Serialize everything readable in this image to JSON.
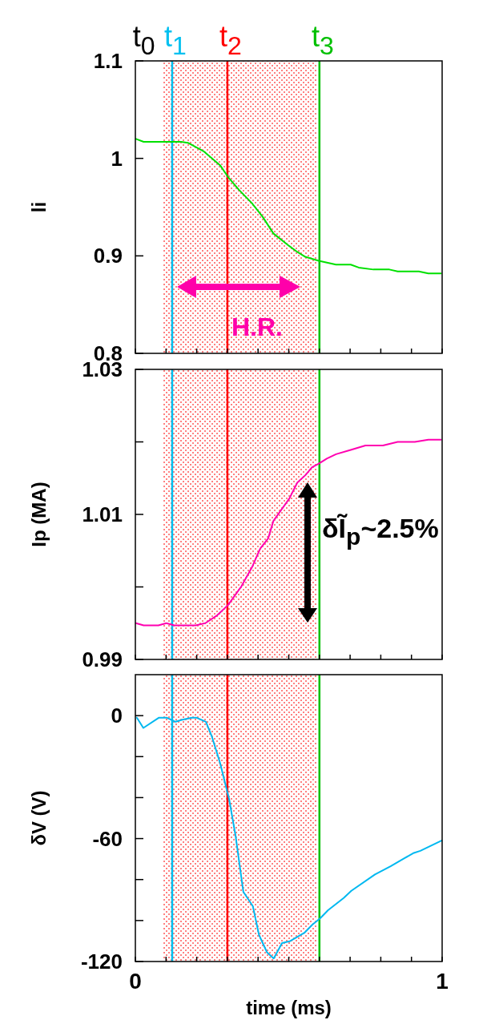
{
  "chart_data": [
    {
      "type": "line",
      "ylabel": "li",
      "xlim": [
        0,
        1
      ],
      "ylim": [
        0.8,
        1.1
      ],
      "xticks": [
        {
          "value": 0,
          "label": null
        },
        {
          "value": 0.1,
          "label": null
        },
        {
          "value": 0.2,
          "label": null
        },
        {
          "value": 0.3,
          "label": null
        },
        {
          "value": 0.4,
          "label": null
        },
        {
          "value": 0.5,
          "label": null
        },
        {
          "value": 0.6,
          "label": null
        },
        {
          "value": 0.7,
          "label": null
        },
        {
          "value": 0.8,
          "label": null
        },
        {
          "value": 0.9,
          "label": null
        },
        {
          "value": 1,
          "label": null
        }
      ],
      "yticks": [
        0.8,
        0.9,
        1,
        1.1
      ],
      "tick_labels": "y",
      "x": [
        0.002,
        0.027,
        0.149,
        0.171,
        0.224,
        0.276,
        0.302,
        0.337,
        0.38,
        0.415,
        0.45,
        0.502,
        0.528,
        0.554,
        0.598,
        0.654,
        0.702,
        0.728,
        0.776,
        0.828,
        0.855,
        0.924,
        0.955,
        0.996
      ],
      "series": [
        {
          "color": "#00e000",
          "values": [
            1.02,
            1.017,
            1.017,
            1.016,
            1.007,
            0.993,
            0.981,
            0.968,
            0.954,
            0.94,
            0.923,
            0.91,
            0.904,
            0.899,
            0.895,
            0.891,
            0.891,
            0.888,
            0.886,
            0.886,
            0.884,
            0.884,
            0.882,
            0.882
          ]
        }
      ],
      "bands": [
        {
          "axis": "x",
          "from": 0.09,
          "to": 0.59,
          "label": "t$_{0}$",
          "color": "#ff8080"
        }
      ],
      "ref_lines": [
        {
          "axis": "x",
          "value": 0.12,
          "label": "t$_{1}$",
          "color": "#00c0f0"
        },
        {
          "axis": "x",
          "value": 0.3,
          "label": "t$_{2}$",
          "color": "#ff0000"
        },
        {
          "axis": "x",
          "value": 0.6,
          "label": "t$_{3}$",
          "color": "#00c000"
        }
      ],
      "annotations": [
        "H.R."
      ]
    },
    {
      "type": "line",
      "ylabel": "Ip (MA)",
      "xlim": [
        0,
        1
      ],
      "ylim": [
        0.99,
        1.03
      ],
      "xticks": [
        {
          "value": 0,
          "label": null
        },
        {
          "value": 0.1,
          "label": null
        },
        {
          "value": 0.2,
          "label": null
        },
        {
          "value": 0.3,
          "label": null
        },
        {
          "value": 0.4,
          "label": null
        },
        {
          "value": 0.5,
          "label": null
        },
        {
          "value": 0.6,
          "label": null
        },
        {
          "value": 0.7,
          "label": null
        },
        {
          "value": 0.8,
          "label": null
        },
        {
          "value": 0.9,
          "label": null
        },
        {
          "value": 1,
          "label": null
        }
      ],
      "yticks": [
        {
          "value": 0.99,
          "label": "0.99"
        },
        {
          "value": 1,
          "label": null
        },
        {
          "value": 1.01,
          "label": "1.01"
        },
        {
          "value": 1.02,
          "label": null
        },
        {
          "value": 1.03,
          "label": "1.03"
        }
      ],
      "tick_labels": "y",
      "x": [
        0.002,
        0.027,
        0.075,
        0.101,
        0.127,
        0.197,
        0.228,
        0.267,
        0.302,
        0.346,
        0.38,
        0.407,
        0.433,
        0.45,
        0.502,
        0.528,
        0.554,
        0.576,
        0.598,
        0.624,
        0.654,
        0.702,
        0.75,
        0.807,
        0.855,
        0.911,
        0.955,
        0.996
      ],
      "series": [
        {
          "color": "#ff00b0",
          "values": [
            0.995,
            0.9947,
            0.9947,
            0.995,
            0.9947,
            0.9947,
            0.995,
            0.9961,
            0.9975,
            1.0001,
            1.0027,
            1.0053,
            1.0067,
            1.0091,
            1.0122,
            1.0144,
            1.0154,
            1.0165,
            1.017,
            1.0177,
            1.0183,
            1.0189,
            1.0195,
            1.0195,
            1.02,
            1.02,
            1.0203,
            1.0203
          ]
        }
      ],
      "bands": [
        {
          "axis": "x",
          "from": 0.09,
          "to": 0.59,
          "color": "#ff8080"
        }
      ],
      "ref_lines": [
        {
          "axis": "x",
          "value": 0.12,
          "color": "#00c0f0"
        },
        {
          "axis": "x",
          "value": 0.3,
          "color": "#ff0000"
        },
        {
          "axis": "x",
          "value": 0.6,
          "color": "#00c000"
        }
      ],
      "annotations": [
        "δĨ$_{p}$~2.5%"
      ]
    },
    {
      "type": "line",
      "ylabel": "δV (V)",
      "xlabel": "time (ms)",
      "xlim": [
        0,
        1
      ],
      "ylim": [
        -120,
        20
      ],
      "xticks": [
        {
          "value": 0,
          "label": "0"
        },
        {
          "value": 0.1,
          "label": null
        },
        {
          "value": 0.2,
          "label": null
        },
        {
          "value": 0.3,
          "label": null
        },
        {
          "value": 0.4,
          "label": null
        },
        {
          "value": 0.5,
          "label": null
        },
        {
          "value": 0.6,
          "label": null
        },
        {
          "value": 0.7,
          "label": null
        },
        {
          "value": 0.8,
          "label": null
        },
        {
          "value": 0.9,
          "label": null
        },
        {
          "value": 1,
          "label": "1"
        }
      ],
      "yticks": [
        {
          "value": -120,
          "label": "-120"
        },
        {
          "value": -100,
          "label": null
        },
        {
          "value": -80,
          "label": null
        },
        {
          "value": -60,
          "label": "-60"
        },
        {
          "value": -40,
          "label": null
        },
        {
          "value": -20,
          "label": null
        },
        {
          "value": 0,
          "label": "0"
        }
      ],
      "x": [
        0.005,
        0.026,
        0.077,
        0.102,
        0.131,
        0.153,
        0.184,
        0.199,
        0.23,
        0.25,
        0.276,
        0.306,
        0.327,
        0.352,
        0.383,
        0.403,
        0.429,
        0.451,
        0.478,
        0.505,
        0.551,
        0.577,
        0.602,
        0.628,
        0.679,
        0.704,
        0.781,
        0.832,
        0.878,
        0.908,
        0.929,
        0.998
      ],
      "series": [
        {
          "color": "#00b8f0",
          "values": [
            -1,
            -6,
            -1,
            -1,
            -3,
            -2,
            -1,
            -1,
            -3,
            -10.5,
            -23,
            -41,
            -59,
            -86,
            -93,
            -107,
            -115.5,
            -118.5,
            -111,
            -110,
            -106,
            -102,
            -99,
            -95,
            -89,
            -85.5,
            -77.5,
            -73.5,
            -69.5,
            -67,
            -66,
            -61
          ]
        }
      ],
      "bands": [
        {
          "axis": "x",
          "from": 0.09,
          "to": 0.59,
          "color": "#ff8080"
        }
      ],
      "ref_lines": [
        {
          "axis": "x",
          "value": 0.12,
          "color": "#00c0f0"
        },
        {
          "axis": "x",
          "value": 0.3,
          "color": "#ff0000"
        },
        {
          "axis": "x",
          "value": 0.6,
          "color": "#00c000"
        }
      ]
    }
  ]
}
